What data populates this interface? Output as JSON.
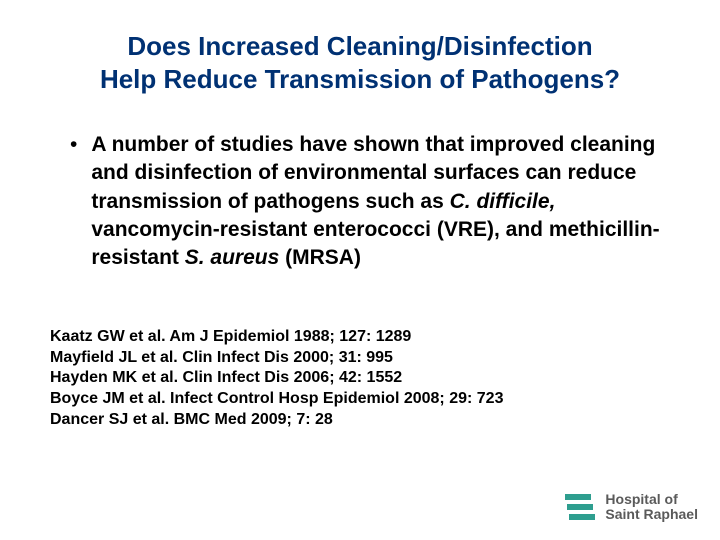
{
  "colors": {
    "title": "#003173",
    "body": "#000000",
    "logo_teal": "#2e9e8f",
    "logo_text": "#5a5a5a",
    "background": "#ffffff"
  },
  "fontsizes": {
    "title": 26,
    "bullet": 21,
    "refs": 16,
    "logo": 14
  },
  "title_line1": "Does Increased Cleaning/Disinfection",
  "title_line2": "Help Reduce Transmission of Pathogens?",
  "bullet_marker": "•",
  "bullet_seg1": "A number of studies have shown that improved cleaning and disinfection of environmental surfaces can reduce transmission of pathogens such as ",
  "bullet_italic1": "C. difficile,",
  "bullet_seg2": " vancomycin-resistant enterococci (VRE), and methicillin-resistant      ",
  "bullet_italic2": "S. aureus",
  "bullet_seg3": " (MRSA)",
  "references": [
    "Kaatz GW et al.  Am J Epidemiol 1988; 127: 1289",
    "Mayfield JL et al.  Clin Infect Dis 2000; 31: 995",
    "Hayden MK et al.  Clin Infect Dis 2006; 42: 1552",
    "Boyce JM et al.  Infect Control Hosp Epidemiol 2008; 29: 723",
    "Dancer SJ et al.  BMC Med 2009; 7: 28"
  ],
  "logo": {
    "line1": "Hospital of",
    "line2": "Saint Raphael"
  }
}
